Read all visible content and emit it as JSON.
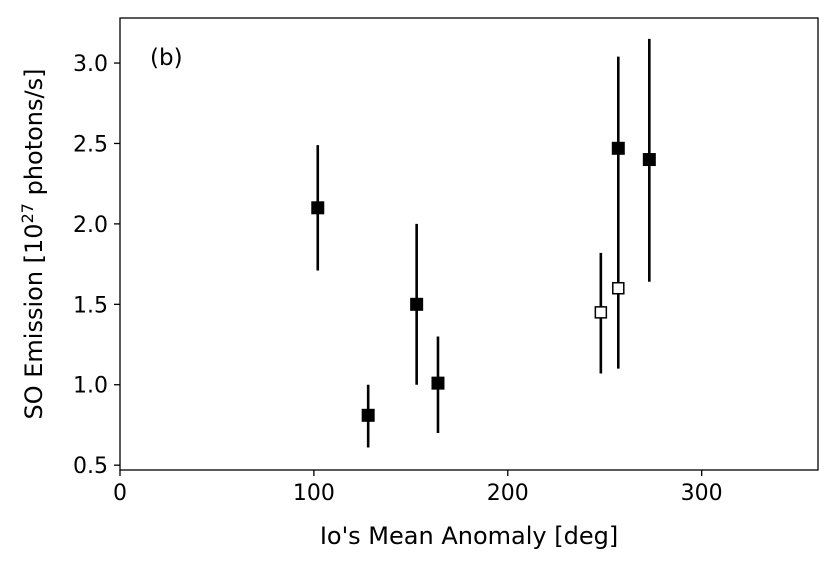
{
  "chart_data": {
    "type": "scatter",
    "panel_label": "(b)",
    "xlabel": "Io's Mean Anomaly [deg]",
    "ylabel_main": "SO Emission [10",
    "ylabel_sup": "27",
    "ylabel_tail": " photons/s]",
    "xlim": [
      0,
      360
    ],
    "ylim": [
      0.47,
      3.28
    ],
    "x_ticks": [
      0,
      100,
      200,
      300
    ],
    "x_tick_labels": [
      "0",
      "100",
      "200",
      "300"
    ],
    "y_ticks": [
      0.5,
      1.0,
      1.5,
      2.0,
      2.5,
      3.0
    ],
    "y_tick_labels": [
      "0.5",
      "1.0",
      "1.5",
      "2.0",
      "2.5",
      "3.0"
    ],
    "grid": false,
    "series": [
      {
        "marker": "filled-square",
        "points": [
          {
            "x": 102,
            "y": 2.1,
            "ylo": 1.71,
            "yhi": 2.49
          },
          {
            "x": 128,
            "y": 0.81,
            "ylo": 0.61,
            "yhi": 1.0
          },
          {
            "x": 153,
            "y": 1.5,
            "ylo": 1.0,
            "yhi": 2.0
          },
          {
            "x": 164,
            "y": 1.01,
            "ylo": 0.7,
            "yhi": 1.3
          },
          {
            "x": 257,
            "y": 2.47,
            "ylo": 1.1,
            "yhi": 3.04
          },
          {
            "x": 273,
            "y": 2.4,
            "ylo": 1.64,
            "yhi": 3.15
          }
        ]
      },
      {
        "marker": "open-square",
        "points": [
          {
            "x": 248,
            "y": 1.45,
            "ylo": 1.07,
            "yhi": 1.82
          },
          {
            "x": 257,
            "y": 1.6,
            "ylo": null,
            "yhi": null
          }
        ]
      }
    ]
  }
}
